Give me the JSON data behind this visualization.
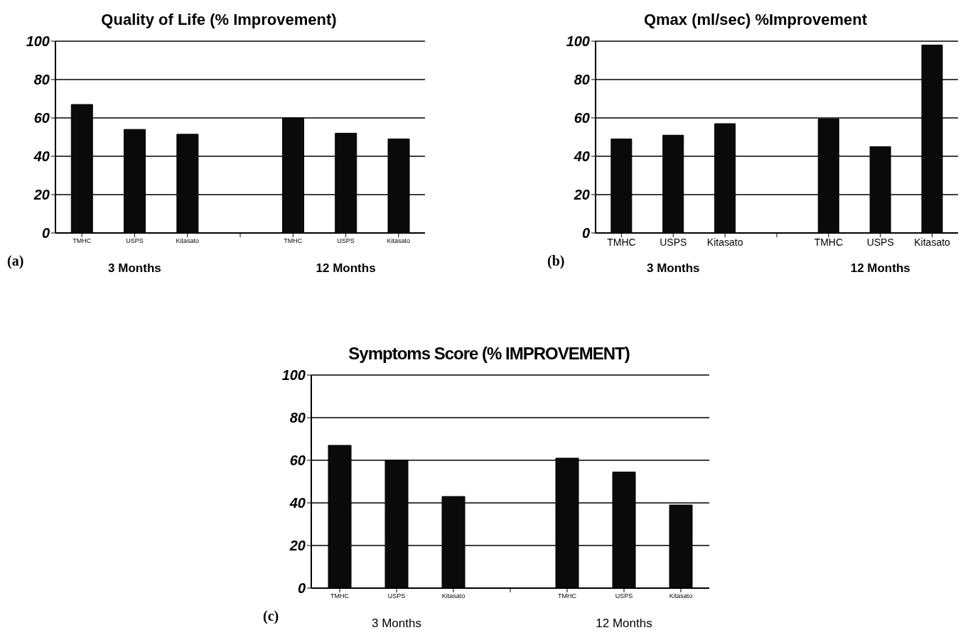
{
  "chart_data": [
    {
      "type": "bar",
      "title": "Quality of Life (% Improvement)",
      "categories": [
        "TMHC",
        "USPS",
        "Kitasato",
        null,
        "TMHC",
        "USPS",
        "Kitasato"
      ],
      "values": [
        67,
        54,
        51.5,
        null,
        60,
        52,
        49
      ],
      "color": "#0a0a0a",
      "ylim": [
        0,
        100
      ],
      "yticks": [
        0,
        20,
        40,
        60,
        80,
        100
      ],
      "grid": "y",
      "annotations": [
        "(a)",
        "3 Months",
        "12 Months"
      ]
    },
    {
      "type": "bar",
      "title": "Qmax (ml/sec) %Improvement",
      "categories": [
        "TMHC",
        "USPS",
        "Kitasato",
        null,
        "TMHC",
        "USPS",
        "Kitasato"
      ],
      "values": [
        49,
        51,
        57,
        null,
        59.5,
        45,
        98
      ],
      "color": "#0a0a0a",
      "ylim": [
        0,
        100
      ],
      "yticks": [
        0,
        20,
        40,
        60,
        80,
        100
      ],
      "grid": "y",
      "annotations": [
        "(b)",
        "3 Months",
        "12 Months"
      ]
    },
    {
      "type": "bar",
      "title": "Symptoms Score (% IMPROVEMENT)",
      "categories": [
        "TMHC",
        "USPS",
        "Kitasato",
        null,
        "TMHC",
        "USPS",
        "Kitasato"
      ],
      "values": [
        67,
        60,
        43,
        null,
        61,
        54.5,
        39
      ],
      "color": "#0a0a0a",
      "ylim": [
        0,
        100
      ],
      "yticks": [
        0,
        20,
        40,
        60,
        80,
        100
      ],
      "grid": "y",
      "annotations": [
        "(c)",
        "3 Months",
        "12 Months"
      ]
    }
  ]
}
